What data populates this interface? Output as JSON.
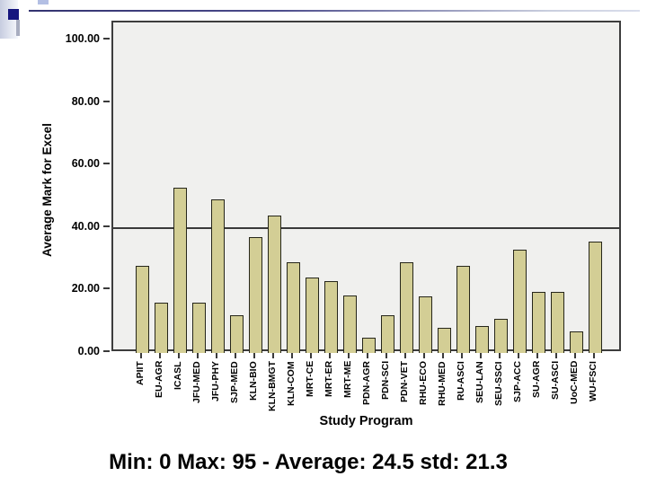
{
  "decor": {
    "navy_square_color": "#15157e",
    "strip_color": "#c7cde0",
    "line_color": "#333370"
  },
  "chart_data": {
    "type": "bar",
    "title": "",
    "xlabel": "Study Program",
    "ylabel": "Average Mark for Excel",
    "categories": [
      "APIIT",
      "EU-AGR",
      "ICASL",
      "JFU-MED",
      "JFU-PHY",
      "SJP-MED",
      "KLN-BIO",
      "KLN-BMGT",
      "KLN-COM",
      "MRT-CE",
      "MRT-ER",
      "MRT-ME",
      "PDN-AGR",
      "PDN-SCI",
      "PDN-VET",
      "RHU-ECO",
      "RHU-MED",
      "RU-ASCI",
      "SEU-LAN",
      "SEU-SSCI",
      "SJP-ACC",
      "SU-AGR",
      "SU-ASCI",
      "UoC-MED",
      "WU-FSCI"
    ],
    "values": [
      28,
      16,
      53,
      16,
      49,
      12,
      37,
      44,
      29,
      24,
      23,
      18.5,
      5,
      12,
      29,
      18,
      8,
      28,
      8.5,
      11,
      33,
      19.5,
      19.5,
      7,
      35.5
    ],
    "ylim": [
      0,
      100
    ],
    "yticks": [
      {
        "value": 0,
        "label": "0.00"
      },
      {
        "value": 20,
        "label": "20.00"
      },
      {
        "value": 40,
        "label": "40.00"
      },
      {
        "value": 60,
        "label": "60.00"
      },
      {
        "value": 80,
        "label": "80.00"
      },
      {
        "value": 100,
        "label": "100.00"
      }
    ],
    "reference_line_value": 40,
    "grid": false,
    "legend": false,
    "bar_color": "#d3ce95",
    "bar_border_color": "#26261a",
    "plot_bg_color": "#f0f0ee"
  },
  "caption": {
    "text": "Min: 0 Max: 95 - Average: 24.5 std: 21.3"
  }
}
